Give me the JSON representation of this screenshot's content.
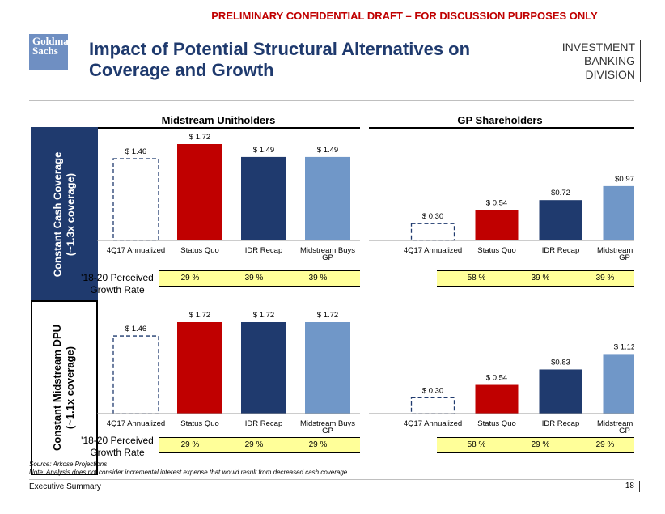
{
  "banner": "PRELIMINARY CONFIDENTIAL DRAFT – FOR DISCUSSION PURPOSES ONLY",
  "logo": {
    "line1": "Goldman",
    "line2": "Sachs"
  },
  "title": "Impact of Potential Structural Alternatives on Coverage and Growth",
  "division": {
    "line1": "INVESTMENT BANKING",
    "line2": "DIVISION"
  },
  "columns": {
    "left": "Midstream Unitholders",
    "right": "GP Shareholders"
  },
  "rows": {
    "row1": {
      "line1": "Constant Cash Coverage",
      "line2": "(~1.3x coverage)"
    },
    "row2": {
      "line1": "Constant Midstream DPU",
      "line2": "(~1.1x coverage)"
    }
  },
  "growth_label": {
    "line1": "'18-20 Perceived",
    "line2": "Growth Rate"
  },
  "colors": {
    "annualized": "#1f3a6e",
    "status_quo": "#c00000",
    "idr_recap": "#1f3a6e",
    "midstream_gp": "#7097c8",
    "growth_fill": "#ffff99"
  },
  "chart_data": [
    {
      "id": "c11",
      "type": "bar",
      "title": "Midstream Unitholders",
      "row": "Constant Cash Coverage",
      "categories": [
        "4Q17 Annualized",
        "Status Quo",
        "IDR Recap",
        "Midstream Buys GP"
      ],
      "values": [
        1.46,
        1.72,
        1.49,
        1.49
      ],
      "labels": [
        "$ 1.46",
        "$ 1.72",
        "$ 1.49",
        "$ 1.49"
      ],
      "growth": [
        "29 %",
        "39 %",
        "39 %"
      ],
      "ylim": [
        0,
        1.72
      ]
    },
    {
      "id": "c12",
      "type": "bar",
      "title": "GP Shareholders",
      "row": "Constant Cash Coverage",
      "categories": [
        "4Q17 Annualized",
        "Status Quo",
        "IDR Recap",
        "Midstream Buys GP"
      ],
      "values": [
        0.3,
        0.54,
        0.72,
        0.97
      ],
      "labels": [
        "$ 0.30",
        "$ 0.54",
        "$0.72",
        "$0.97"
      ],
      "growth": [
        "58 %",
        "39 %",
        "39 %"
      ],
      "ylim": [
        0,
        1.72
      ]
    },
    {
      "id": "c21",
      "type": "bar",
      "title": "Midstream Unitholders",
      "row": "Constant Midstream DPU",
      "categories": [
        "4Q17 Annualized",
        "Status Quo",
        "IDR Recap",
        "Midstream Buys GP"
      ],
      "values": [
        1.46,
        1.72,
        1.72,
        1.72
      ],
      "labels": [
        "$ 1.46",
        "$ 1.72",
        "$ 1.72",
        "$ 1.72"
      ],
      "growth": [
        "29 %",
        "29 %",
        "29 %"
      ],
      "ylim": [
        0,
        1.72
      ]
    },
    {
      "id": "c22",
      "type": "bar",
      "title": "GP Shareholders",
      "row": "Constant Midstream DPU",
      "categories": [
        "4Q17 Annualized",
        "Status Quo",
        "IDR Recap",
        "Midstream Buys GP"
      ],
      "values": [
        0.3,
        0.54,
        0.83,
        1.12
      ],
      "labels": [
        "$ 0.30",
        "$ 0.54",
        "$0.83",
        "$ 1.12"
      ],
      "growth": [
        "58 %",
        "29 %",
        "29 %"
      ],
      "ylim": [
        0,
        1.72
      ]
    }
  ],
  "source": "Source: Arkose Projections",
  "note": "Note: Analysis does not consider incremental interest expense that would result from decreased cash coverage.",
  "footer": "Executive Summary",
  "page_number": "18"
}
